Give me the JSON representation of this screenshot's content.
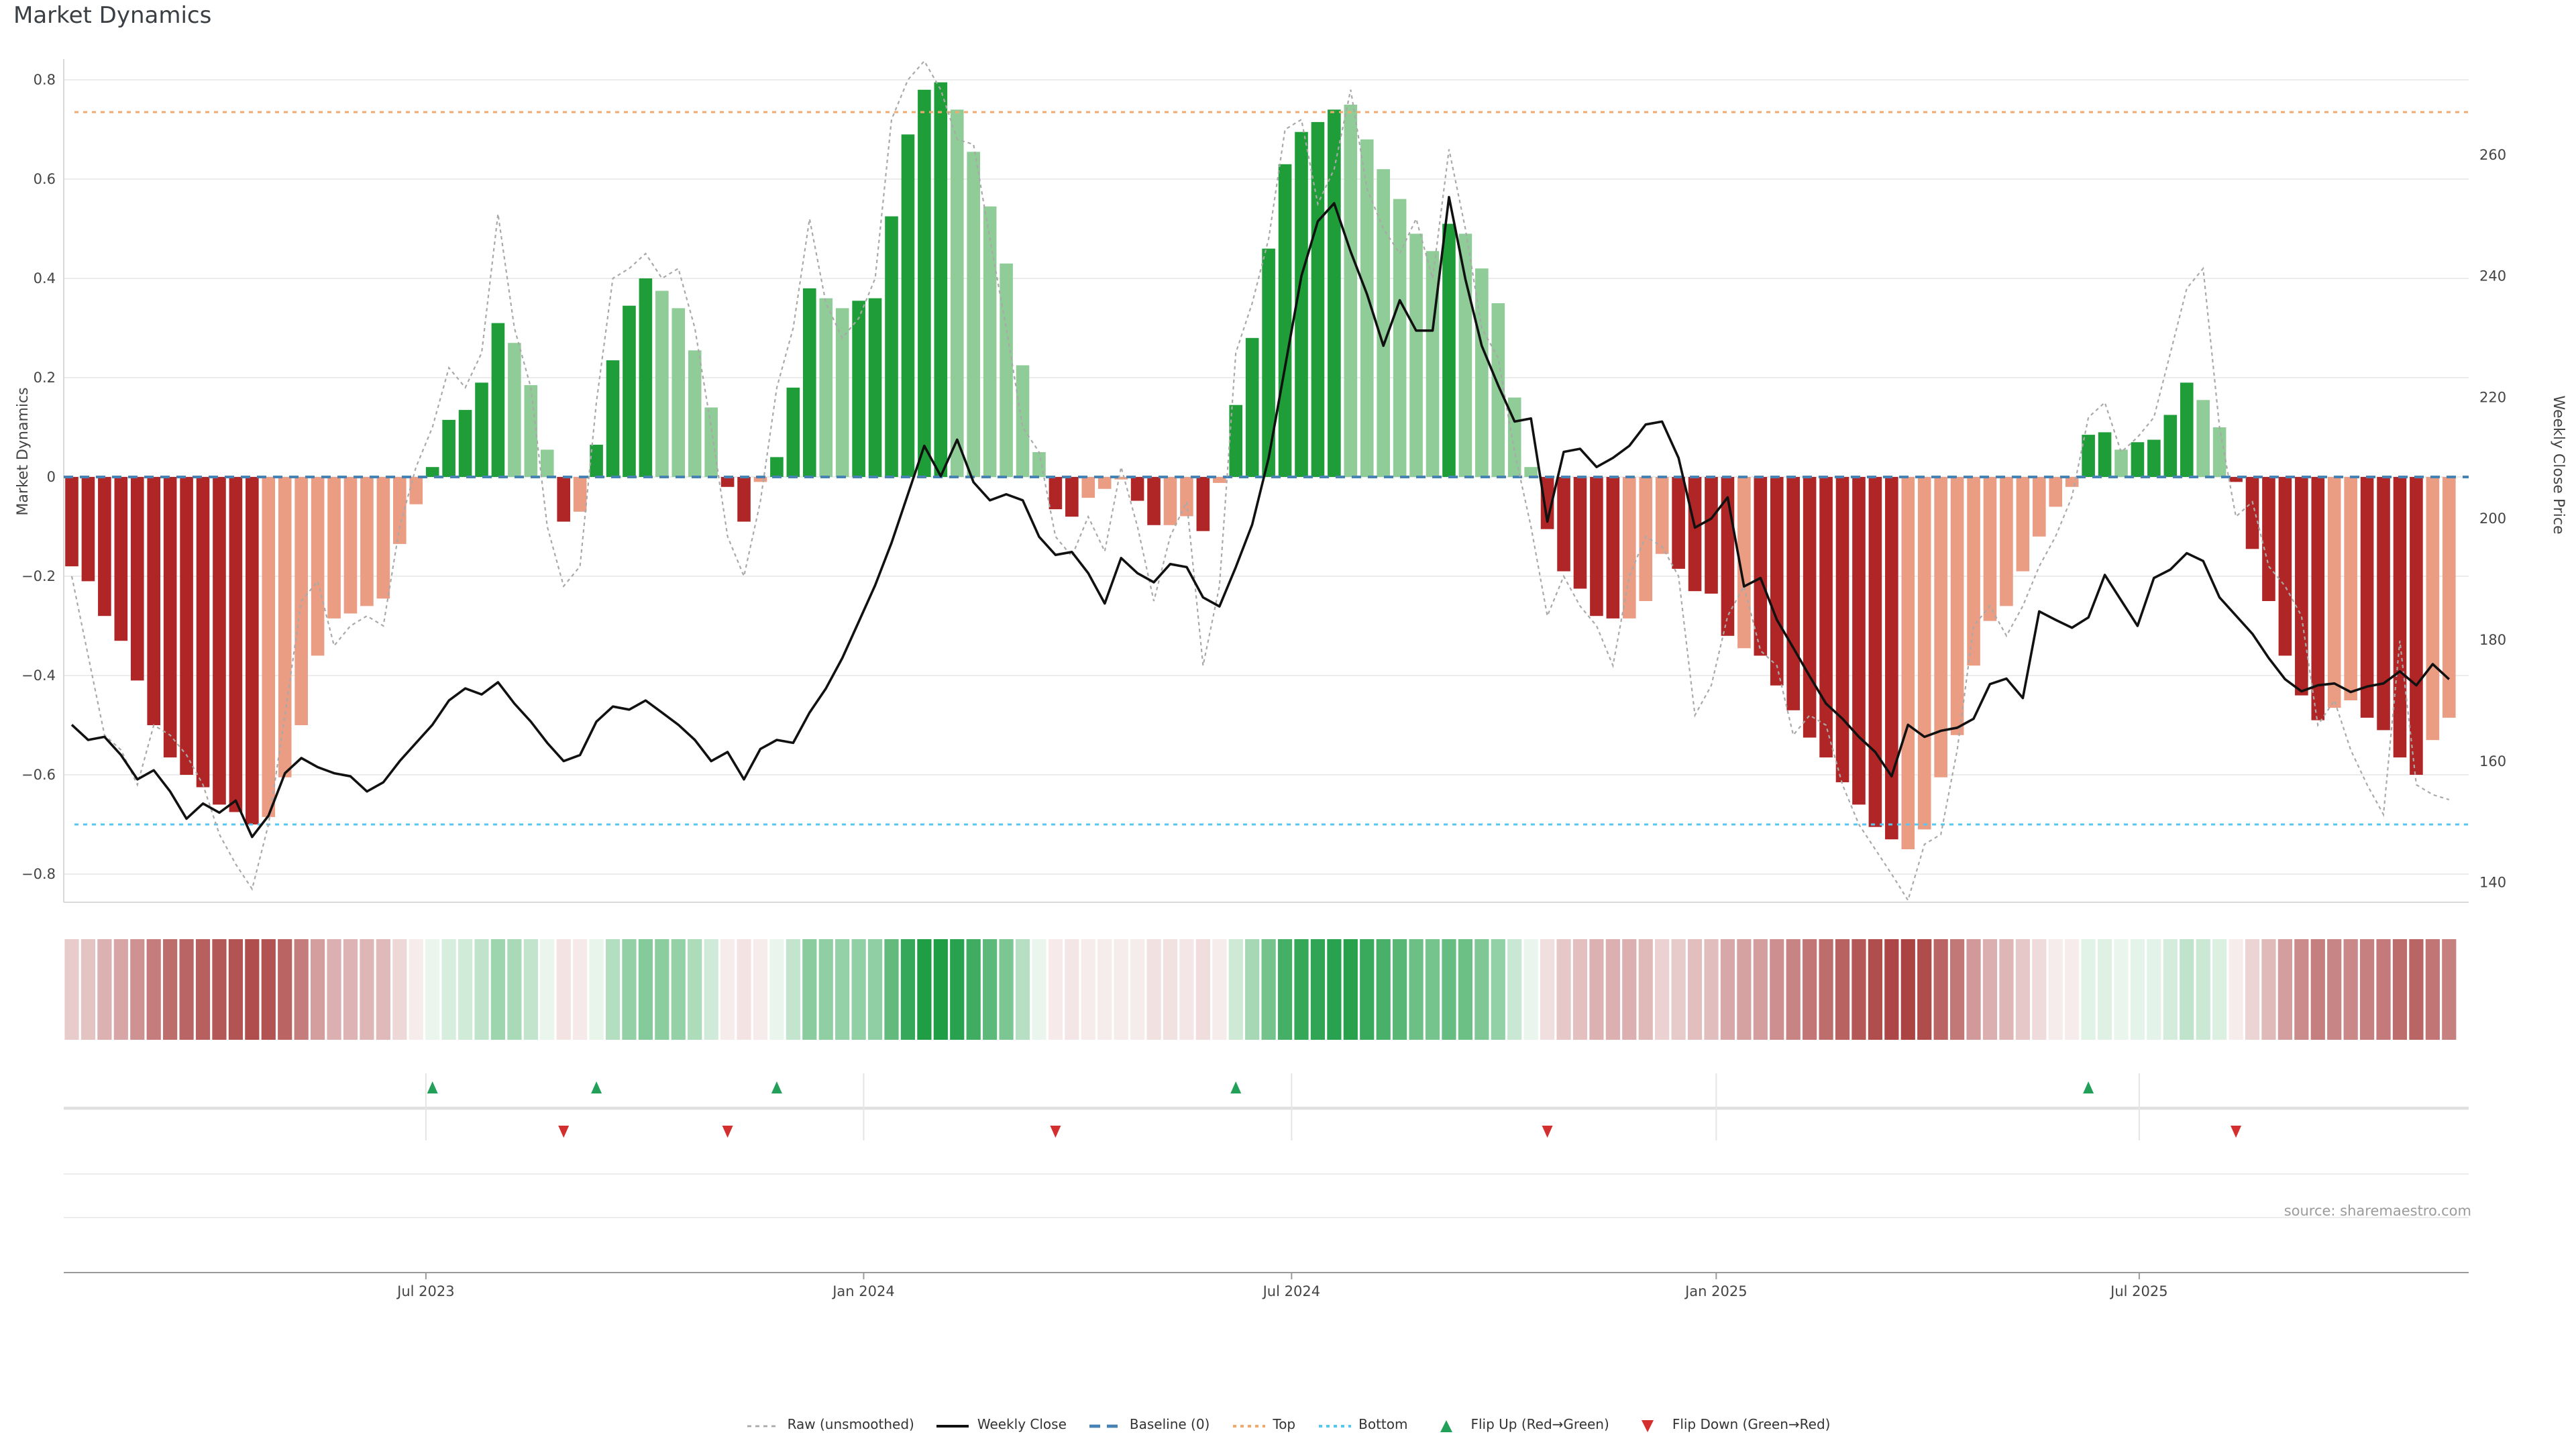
{
  "page": {
    "title": "Market Dynamics",
    "source_note": "source: sharemaestro.com"
  },
  "colors": {
    "dark_red": "#b02525",
    "light_red": "#eb9d84",
    "dark_green": "#1f9d38",
    "light_green": "#90cc97",
    "baseline_blue": "#4682b4",
    "top_orange": "#f2a96e",
    "bottom_cyan": "#56c7f0",
    "raw_gray": "#a9a9a9",
    "close_black": "#111111",
    "grid": "#ececec",
    "spine": "#d9d9d9",
    "tick_text": "#444444",
    "strip_red": "#a83c3c",
    "strip_green": "#1f9e46",
    "flip_up": "#22a05a",
    "flip_down": "#d32f2f"
  },
  "chart_data": {
    "type": "bar",
    "title": "Market Dynamics",
    "left_axis": {
      "label": "Market Dynamics",
      "tick_values": [
        0.8,
        0.6,
        0.4,
        0.2,
        0,
        -0.2,
        -0.4,
        -0.6,
        -0.8
      ],
      "tick_labels": [
        "0.8",
        "0.6",
        "0.4",
        "0.2",
        "0",
        "−0.2",
        "−0.4",
        "−0.6",
        "−0.8"
      ],
      "ylim": [
        -0.86,
        0.85
      ]
    },
    "right_axis": {
      "label": "Weekly Close Price",
      "tick_values": [
        140,
        160,
        180,
        200,
        220,
        240,
        260
      ],
      "ylim": [
        136,
        277
      ]
    },
    "x_axis": {
      "n_weeks": 146,
      "tick_labels": [
        "Jul 2023",
        "Jan 2024",
        "Jul 2024",
        "Jan 2025",
        "Jul 2025"
      ],
      "tick_weeks": [
        21.6,
        48.3,
        74.4,
        100.3,
        126.1
      ]
    },
    "reference_lines": {
      "baseline": 0,
      "top": 0.735,
      "bottom": -0.7
    },
    "series": [
      {
        "name": "Market Dynamics (smoothed bars)",
        "values": [
          -0.18,
          -0.21,
          -0.28,
          -0.33,
          -0.41,
          -0.5,
          -0.565,
          -0.6,
          -0.625,
          -0.66,
          -0.675,
          -0.7,
          -0.685,
          -0.605,
          -0.5,
          -0.36,
          -0.285,
          -0.275,
          -0.26,
          -0.245,
          -0.135,
          -0.055,
          0.02,
          0.115,
          0.135,
          0.19,
          0.31,
          0.27,
          0.185,
          0.055,
          -0.09,
          -0.07,
          0.065,
          0.235,
          0.345,
          0.4,
          0.375,
          0.34,
          0.255,
          0.14,
          -0.02,
          -0.09,
          -0.01,
          0.04,
          0.18,
          0.38,
          0.36,
          0.34,
          0.355,
          0.36,
          0.525,
          0.69,
          0.78,
          0.795,
          0.74,
          0.655,
          0.545,
          0.43,
          0.225,
          0.05,
          -0.065,
          -0.08,
          -0.042,
          -0.024,
          -0.005,
          -0.048,
          -0.097,
          -0.097,
          -0.079,
          -0.109,
          -0.012,
          0.145,
          0.28,
          0.46,
          0.63,
          0.695,
          0.715,
          0.74,
          0.75,
          0.68,
          0.62,
          0.56,
          0.49,
          0.455,
          0.51,
          0.49,
          0.42,
          0.35,
          0.16,
          0.02,
          -0.105,
          -0.19,
          -0.225,
          -0.28,
          -0.285,
          -0.285,
          -0.25,
          -0.155,
          -0.185,
          -0.23,
          -0.235,
          -0.32,
          -0.345,
          -0.36,
          -0.42,
          -0.47,
          -0.525,
          -0.565,
          -0.615,
          -0.66,
          -0.705,
          -0.73,
          -0.75,
          -0.71,
          -0.605,
          -0.52,
          -0.38,
          -0.29,
          -0.26,
          -0.19,
          -0.12,
          -0.06,
          -0.02,
          0.085,
          0.09,
          0.055,
          0.07,
          0.075,
          0.125,
          0.19,
          0.155,
          0.1,
          -0.01,
          -0.145,
          -0.25,
          -0.36,
          -0.44,
          -0.49,
          -0.465,
          -0.45,
          -0.485,
          -0.51,
          -0.565,
          -0.6,
          -0.53,
          -0.485
        ],
        "shade_runs": [
          [
            12,
            "d"
          ],
          [
            10,
            "l"
          ],
          [
            5,
            "d"
          ],
          [
            3,
            "l"
          ],
          [
            1,
            "d"
          ],
          [
            1,
            "l"
          ],
          [
            4,
            "d"
          ],
          [
            4,
            "l"
          ],
          [
            2,
            "d"
          ],
          [
            1,
            "l"
          ],
          [
            3,
            "d"
          ],
          [
            2,
            "l"
          ],
          [
            6,
            "d"
          ],
          [
            6,
            "l"
          ],
          [
            2,
            "d"
          ],
          [
            3,
            "l"
          ],
          [
            2,
            "d"
          ],
          [
            2,
            "l"
          ],
          [
            1,
            "d"
          ],
          [
            1,
            "l"
          ],
          [
            7,
            "d"
          ],
          [
            6,
            "l"
          ],
          [
            1,
            "d"
          ],
          [
            5,
            "l"
          ],
          [
            5,
            "d"
          ],
          [
            3,
            "l"
          ],
          [
            4,
            "d"
          ],
          [
            1,
            "l"
          ],
          [
            9,
            "d"
          ],
          [
            11,
            "l"
          ],
          [
            2,
            "d"
          ],
          [
            1,
            "l"
          ],
          [
            4,
            "d"
          ],
          [
            2,
            "l"
          ],
          [
            6,
            "d"
          ],
          [
            2,
            "l"
          ],
          [
            4,
            "d"
          ],
          [
            2,
            "l"
          ]
        ]
      },
      {
        "name": "Raw (unsmoothed)",
        "values": [
          -0.2,
          -0.36,
          -0.52,
          -0.55,
          -0.62,
          -0.5,
          -0.52,
          -0.56,
          -0.62,
          -0.72,
          -0.78,
          -0.83,
          -0.7,
          -0.48,
          -0.25,
          -0.21,
          -0.34,
          -0.3,
          -0.28,
          -0.3,
          -0.1,
          0.02,
          0.1,
          0.22,
          0.18,
          0.25,
          0.53,
          0.3,
          0.18,
          -0.1,
          -0.22,
          -0.18,
          0.15,
          0.4,
          0.42,
          0.45,
          0.4,
          0.42,
          0.3,
          0.1,
          -0.12,
          -0.2,
          -0.05,
          0.18,
          0.3,
          0.52,
          0.35,
          0.28,
          0.32,
          0.4,
          0.72,
          0.8,
          0.84,
          0.78,
          0.68,
          0.67,
          0.48,
          0.3,
          0.1,
          0.05,
          -0.12,
          -0.16,
          -0.08,
          -0.15,
          0.02,
          -0.1,
          -0.25,
          -0.12,
          -0.05,
          -0.38,
          -0.22,
          0.25,
          0.35,
          0.48,
          0.7,
          0.72,
          0.55,
          0.62,
          0.78,
          0.58,
          0.5,
          0.45,
          0.52,
          0.4,
          0.66,
          0.5,
          0.3,
          0.24,
          0.05,
          -0.1,
          -0.28,
          -0.2,
          -0.26,
          -0.3,
          -0.38,
          -0.2,
          -0.12,
          -0.14,
          -0.2,
          -0.48,
          -0.42,
          -0.28,
          -0.22,
          -0.35,
          -0.38,
          -0.52,
          -0.48,
          -0.5,
          -0.62,
          -0.7,
          -0.75,
          -0.8,
          -0.86,
          -0.74,
          -0.72,
          -0.55,
          -0.3,
          -0.26,
          -0.32,
          -0.26,
          -0.18,
          -0.12,
          -0.04,
          0.12,
          0.15,
          0.05,
          0.08,
          0.12,
          0.25,
          0.38,
          0.42,
          0.1,
          -0.08,
          -0.05,
          -0.18,
          -0.22,
          -0.28,
          -0.5,
          -0.45,
          -0.55,
          -0.62,
          -0.68,
          -0.33,
          -0.62,
          -0.64,
          -0.65
        ]
      },
      {
        "name": "Weekly Close",
        "values": [
          166,
          163.5,
          164,
          161,
          157,
          158.5,
          155,
          150.5,
          153,
          151.5,
          153.5,
          147.5,
          151,
          158,
          160.5,
          159,
          158,
          157.5,
          155,
          156.5,
          160,
          163,
          166,
          170,
          172,
          171,
          173,
          169.5,
          166.5,
          163,
          160,
          161,
          166.5,
          169,
          168.5,
          170,
          168,
          166,
          163.5,
          160,
          161.5,
          157,
          162,
          163.5,
          163,
          168,
          172,
          177,
          183,
          189,
          196,
          204,
          212,
          207,
          213,
          206,
          203,
          204,
          203,
          197,
          194,
          194.5,
          191,
          186,
          193.5,
          191,
          189.5,
          192.5,
          192,
          187,
          185.5,
          192,
          199,
          210,
          225,
          240,
          249,
          252,
          244,
          237,
          228.5,
          236,
          231,
          231,
          253,
          239.5,
          228.5,
          222,
          216,
          216.5,
          199.5,
          211,
          211.5,
          208.5,
          210,
          212,
          215.5,
          216,
          210,
          198.5,
          200,
          203.5,
          188.8,
          190.2,
          183.3,
          178.7,
          174,
          169.5,
          167,
          164,
          161.5,
          157.5,
          166,
          164,
          165,
          165.5,
          167,
          172.7,
          173.6,
          170.4,
          184.7,
          183.3,
          182,
          183.7,
          190.7,
          186.5,
          182.3,
          190.2,
          191.6,
          194.3,
          193,
          187,
          184,
          181,
          177,
          173.5,
          171.5,
          172.5,
          172.8,
          171.4,
          172.3,
          172.8,
          174.8,
          172.5,
          176,
          173.5
        ]
      }
    ],
    "heatmap_strip": {
      "note": "weekly cells colored by smoothed dynamics value, red-to-green diverging"
    },
    "flip_up_weeks": [
      22,
      32,
      43,
      71,
      123
    ],
    "flip_down_weeks": [
      30,
      40,
      60,
      90,
      132
    ],
    "legend": [
      {
        "label": "Raw (unsmoothed)",
        "icon": "dashed-gray-line"
      },
      {
        "label": "Weekly Close",
        "icon": "solid-black-line"
      },
      {
        "label": "Baseline (0)",
        "icon": "blue-dashes"
      },
      {
        "label": "Top",
        "icon": "orange-dots"
      },
      {
        "label": "Bottom",
        "icon": "cyan-dots"
      },
      {
        "label": "Flip Up (Red→Green)",
        "icon": "green-up-triangle"
      },
      {
        "label": "Flip Down (Green→Red)",
        "icon": "red-down-triangle"
      }
    ]
  }
}
